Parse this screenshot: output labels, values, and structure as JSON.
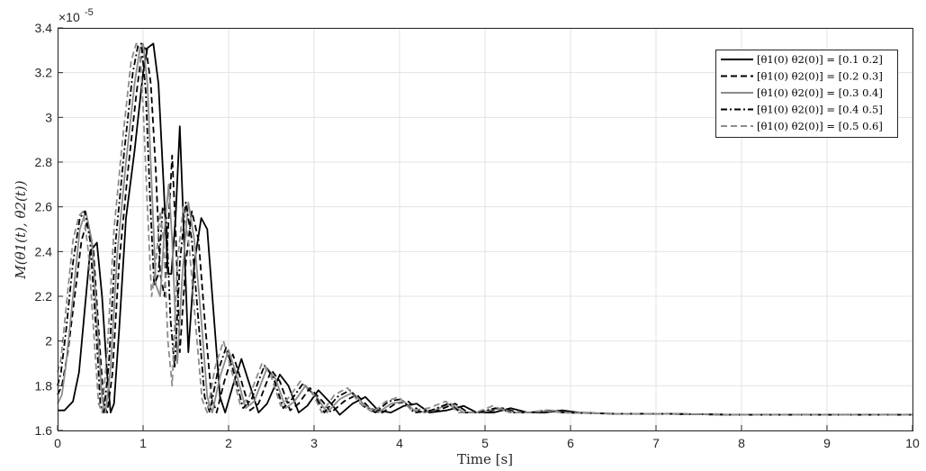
{
  "chart_data": {
    "type": "line",
    "xlabel": "Time [s]",
    "ylabel": "M(θ1(t), θ2(t))",
    "y_exponent_label": "×10",
    "y_exponent_power": "-5",
    "xlim": [
      0,
      10
    ],
    "ylim": [
      1.6,
      3.4
    ],
    "xticks": [
      "0",
      "1",
      "2",
      "3",
      "4",
      "5",
      "6",
      "7",
      "8",
      "9",
      "10"
    ],
    "yticks": [
      "1.6",
      "1.8",
      "2",
      "2.2",
      "2.4",
      "2.6",
      "2.8",
      "3",
      "3.2",
      "3.4"
    ],
    "grid": true,
    "legend_position": "top-right",
    "series": [
      {
        "name": "[θ1(0) θ2(0)] = [0.1 0.2]",
        "color": "#000000",
        "dash": "solid",
        "points": [
          [
            0,
            1.69
          ],
          [
            0.08,
            1.69
          ],
          [
            0.18,
            1.73
          ],
          [
            0.25,
            1.86
          ],
          [
            0.32,
            2.15
          ],
          [
            0.38,
            2.4
          ],
          [
            0.46,
            2.44
          ],
          [
            0.52,
            2.2
          ],
          [
            0.58,
            1.85
          ],
          [
            0.62,
            1.68
          ],
          [
            0.66,
            1.72
          ],
          [
            0.72,
            2.05
          ],
          [
            0.8,
            2.55
          ],
          [
            0.9,
            2.85
          ],
          [
            1.0,
            3.2
          ],
          [
            1.05,
            3.31
          ],
          [
            1.12,
            3.33
          ],
          [
            1.18,
            3.15
          ],
          [
            1.24,
            2.7
          ],
          [
            1.29,
            2.3
          ],
          [
            1.33,
            2.3
          ],
          [
            1.38,
            2.55
          ],
          [
            1.43,
            2.96
          ],
          [
            1.47,
            2.55
          ],
          [
            1.53,
            1.95
          ],
          [
            1.6,
            2.35
          ],
          [
            1.68,
            2.55
          ],
          [
            1.75,
            2.5
          ],
          [
            1.82,
            2.15
          ],
          [
            1.9,
            1.75
          ],
          [
            1.96,
            1.68
          ],
          [
            2.05,
            1.8
          ],
          [
            2.15,
            1.92
          ],
          [
            2.25,
            1.8
          ],
          [
            2.35,
            1.68
          ],
          [
            2.45,
            1.72
          ],
          [
            2.6,
            1.85
          ],
          [
            2.7,
            1.8
          ],
          [
            2.82,
            1.68
          ],
          [
            2.92,
            1.71
          ],
          [
            3.05,
            1.78
          ],
          [
            3.2,
            1.72
          ],
          [
            3.3,
            1.67
          ],
          [
            3.45,
            1.72
          ],
          [
            3.6,
            1.75
          ],
          [
            3.75,
            1.69
          ],
          [
            3.9,
            1.68
          ],
          [
            4.05,
            1.71
          ],
          [
            4.2,
            1.72
          ],
          [
            4.35,
            1.68
          ],
          [
            4.55,
            1.69
          ],
          [
            4.75,
            1.71
          ],
          [
            4.9,
            1.68
          ],
          [
            5.1,
            1.68
          ],
          [
            5.3,
            1.7
          ],
          [
            5.5,
            1.68
          ],
          [
            5.7,
            1.68
          ],
          [
            5.9,
            1.69
          ],
          [
            6.1,
            1.68
          ],
          [
            6.5,
            1.675
          ],
          [
            7,
            1.675
          ],
          [
            8,
            1.67
          ],
          [
            10,
            1.67
          ]
        ]
      },
      {
        "name": "[θ1(0) θ2(0)] = [0.2 0.3]",
        "color": "#000000",
        "dash": "dashed",
        "points": [
          [
            0,
            1.76
          ],
          [
            0.05,
            1.8
          ],
          [
            0.12,
            1.95
          ],
          [
            0.2,
            2.2
          ],
          [
            0.28,
            2.45
          ],
          [
            0.35,
            2.54
          ],
          [
            0.42,
            2.4
          ],
          [
            0.48,
            2.05
          ],
          [
            0.54,
            1.72
          ],
          [
            0.58,
            1.68
          ],
          [
            0.64,
            1.85
          ],
          [
            0.72,
            2.35
          ],
          [
            0.82,
            2.75
          ],
          [
            0.92,
            3.1
          ],
          [
            0.98,
            3.28
          ],
          [
            1.03,
            3.32
          ],
          [
            1.09,
            3.15
          ],
          [
            1.15,
            2.75
          ],
          [
            1.2,
            2.3
          ],
          [
            1.25,
            2.2
          ],
          [
            1.3,
            2.55
          ],
          [
            1.34,
            2.83
          ],
          [
            1.38,
            2.5
          ],
          [
            1.43,
            1.95
          ],
          [
            1.5,
            2.35
          ],
          [
            1.57,
            2.58
          ],
          [
            1.65,
            2.45
          ],
          [
            1.72,
            2.1
          ],
          [
            1.8,
            1.75
          ],
          [
            1.86,
            1.68
          ],
          [
            1.95,
            1.82
          ],
          [
            2.05,
            1.94
          ],
          [
            2.15,
            1.82
          ],
          [
            2.25,
            1.69
          ],
          [
            2.35,
            1.72
          ],
          [
            2.5,
            1.87
          ],
          [
            2.6,
            1.82
          ],
          [
            2.72,
            1.69
          ],
          [
            2.82,
            1.72
          ],
          [
            2.95,
            1.79
          ],
          [
            3.1,
            1.73
          ],
          [
            3.2,
            1.68
          ],
          [
            3.35,
            1.73
          ],
          [
            3.5,
            1.76
          ],
          [
            3.65,
            1.7
          ],
          [
            3.8,
            1.68
          ],
          [
            3.95,
            1.72
          ],
          [
            4.1,
            1.73
          ],
          [
            4.25,
            1.68
          ],
          [
            4.45,
            1.69
          ],
          [
            4.65,
            1.72
          ],
          [
            4.8,
            1.68
          ],
          [
            5.0,
            1.68
          ],
          [
            5.2,
            1.7
          ],
          [
            5.4,
            1.68
          ],
          [
            5.6,
            1.68
          ],
          [
            5.8,
            1.69
          ],
          [
            6.0,
            1.68
          ],
          [
            6.5,
            1.675
          ],
          [
            7,
            1.675
          ],
          [
            8,
            1.67
          ],
          [
            10,
            1.67
          ]
        ]
      },
      {
        "name": "[θ1(0) θ2(0)] = [0.3 0.4]",
        "color": "#8c8c8c",
        "dash": "solid",
        "points": [
          [
            0,
            1.72
          ],
          [
            0.05,
            1.76
          ],
          [
            0.1,
            1.9
          ],
          [
            0.18,
            2.2
          ],
          [
            0.26,
            2.5
          ],
          [
            0.33,
            2.58
          ],
          [
            0.4,
            2.45
          ],
          [
            0.46,
            2.1
          ],
          [
            0.52,
            1.74
          ],
          [
            0.56,
            1.68
          ],
          [
            0.62,
            1.88
          ],
          [
            0.7,
            2.4
          ],
          [
            0.8,
            2.8
          ],
          [
            0.9,
            3.15
          ],
          [
            0.96,
            3.3
          ],
          [
            1.0,
            3.33
          ],
          [
            1.05,
            3.15
          ],
          [
            1.1,
            2.7
          ],
          [
            1.15,
            2.25
          ],
          [
            1.2,
            2.2
          ],
          [
            1.25,
            2.5
          ],
          [
            1.3,
            2.7
          ],
          [
            1.34,
            2.45
          ],
          [
            1.4,
            1.9
          ],
          [
            1.46,
            2.3
          ],
          [
            1.53,
            2.62
          ],
          [
            1.6,
            2.45
          ],
          [
            1.68,
            2.1
          ],
          [
            1.75,
            1.75
          ],
          [
            1.81,
            1.68
          ],
          [
            1.9,
            1.84
          ],
          [
            2.0,
            1.96
          ],
          [
            2.1,
            1.84
          ],
          [
            2.2,
            1.7
          ],
          [
            2.3,
            1.73
          ],
          [
            2.45,
            1.88
          ],
          [
            2.55,
            1.83
          ],
          [
            2.67,
            1.7
          ],
          [
            2.77,
            1.73
          ],
          [
            2.9,
            1.8
          ],
          [
            3.05,
            1.74
          ],
          [
            3.15,
            1.68
          ],
          [
            3.3,
            1.74
          ],
          [
            3.45,
            1.77
          ],
          [
            3.6,
            1.71
          ],
          [
            3.75,
            1.68
          ],
          [
            3.9,
            1.72
          ],
          [
            4.05,
            1.73
          ],
          [
            4.2,
            1.68
          ],
          [
            4.4,
            1.69
          ],
          [
            4.6,
            1.72
          ],
          [
            4.75,
            1.68
          ],
          [
            4.95,
            1.68
          ],
          [
            5.15,
            1.7
          ],
          [
            5.35,
            1.68
          ],
          [
            5.55,
            1.68
          ],
          [
            5.75,
            1.69
          ],
          [
            5.95,
            1.68
          ],
          [
            6.5,
            1.675
          ],
          [
            7,
            1.675
          ],
          [
            8,
            1.67
          ],
          [
            10,
            1.67
          ]
        ]
      },
      {
        "name": "[θ1(0) θ2(0)] = [0.4 0.5]",
        "color": "#000000",
        "dash": "dashdot",
        "points": [
          [
            0,
            1.8
          ],
          [
            0.04,
            1.86
          ],
          [
            0.1,
            2.05
          ],
          [
            0.18,
            2.35
          ],
          [
            0.26,
            2.55
          ],
          [
            0.32,
            2.58
          ],
          [
            0.38,
            2.45
          ],
          [
            0.45,
            2.05
          ],
          [
            0.5,
            1.72
          ],
          [
            0.54,
            1.68
          ],
          [
            0.6,
            1.9
          ],
          [
            0.68,
            2.45
          ],
          [
            0.78,
            2.85
          ],
          [
            0.88,
            3.2
          ],
          [
            0.94,
            3.32
          ],
          [
            0.98,
            3.33
          ],
          [
            1.03,
            3.12
          ],
          [
            1.08,
            2.65
          ],
          [
            1.13,
            2.25
          ],
          [
            1.18,
            2.3
          ],
          [
            1.23,
            2.6
          ],
          [
            1.27,
            2.55
          ],
          [
            1.32,
            2.1
          ],
          [
            1.37,
            1.88
          ],
          [
            1.43,
            2.35
          ],
          [
            1.5,
            2.62
          ],
          [
            1.57,
            2.45
          ],
          [
            1.65,
            2.08
          ],
          [
            1.72,
            1.75
          ],
          [
            1.78,
            1.68
          ],
          [
            1.87,
            1.86
          ],
          [
            1.97,
            1.97
          ],
          [
            2.07,
            1.85
          ],
          [
            2.17,
            1.7
          ],
          [
            2.27,
            1.74
          ],
          [
            2.42,
            1.89
          ],
          [
            2.52,
            1.84
          ],
          [
            2.64,
            1.7
          ],
          [
            2.74,
            1.74
          ],
          [
            2.87,
            1.81
          ],
          [
            3.02,
            1.75
          ],
          [
            3.12,
            1.68
          ],
          [
            3.27,
            1.75
          ],
          [
            3.42,
            1.78
          ],
          [
            3.57,
            1.71
          ],
          [
            3.72,
            1.68
          ],
          [
            3.87,
            1.73
          ],
          [
            4.02,
            1.74
          ],
          [
            4.17,
            1.68
          ],
          [
            4.37,
            1.69
          ],
          [
            4.57,
            1.72
          ],
          [
            4.72,
            1.68
          ],
          [
            4.92,
            1.68
          ],
          [
            5.12,
            1.7
          ],
          [
            5.32,
            1.68
          ],
          [
            5.52,
            1.68
          ],
          [
            5.72,
            1.69
          ],
          [
            5.92,
            1.68
          ],
          [
            6.5,
            1.675
          ],
          [
            7,
            1.675
          ],
          [
            8,
            1.67
          ],
          [
            10,
            1.67
          ]
        ]
      },
      {
        "name": "[θ1(0) θ2(0)] = [0.5 0.6]",
        "color": "#8c8c8c",
        "dash": "dashed",
        "points": [
          [
            0,
            1.86
          ],
          [
            0.04,
            1.92
          ],
          [
            0.1,
            2.15
          ],
          [
            0.18,
            2.45
          ],
          [
            0.25,
            2.56
          ],
          [
            0.3,
            2.58
          ],
          [
            0.36,
            2.4
          ],
          [
            0.43,
            2.0
          ],
          [
            0.48,
            1.72
          ],
          [
            0.52,
            1.68
          ],
          [
            0.58,
            1.95
          ],
          [
            0.66,
            2.5
          ],
          [
            0.76,
            2.9
          ],
          [
            0.86,
            3.25
          ],
          [
            0.92,
            3.33
          ],
          [
            0.96,
            3.32
          ],
          [
            1.0,
            3.05
          ],
          [
            1.05,
            2.6
          ],
          [
            1.1,
            2.2
          ],
          [
            1.15,
            2.35
          ],
          [
            1.2,
            2.58
          ],
          [
            1.24,
            2.45
          ],
          [
            1.29,
            2.0
          ],
          [
            1.34,
            1.8
          ],
          [
            1.4,
            2.35
          ],
          [
            1.47,
            2.6
          ],
          [
            1.54,
            2.42
          ],
          [
            1.62,
            2.05
          ],
          [
            1.69,
            1.74
          ],
          [
            1.75,
            1.68
          ],
          [
            1.84,
            1.88
          ],
          [
            1.94,
            2.0
          ],
          [
            2.04,
            1.86
          ],
          [
            2.14,
            1.71
          ],
          [
            2.24,
            1.75
          ],
          [
            2.39,
            1.9
          ],
          [
            2.49,
            1.85
          ],
          [
            2.61,
            1.71
          ],
          [
            2.71,
            1.75
          ],
          [
            2.84,
            1.82
          ],
          [
            2.99,
            1.76
          ],
          [
            3.09,
            1.68
          ],
          [
            3.24,
            1.76
          ],
          [
            3.39,
            1.79
          ],
          [
            3.54,
            1.72
          ],
          [
            3.69,
            1.68
          ],
          [
            3.84,
            1.73
          ],
          [
            3.99,
            1.75
          ],
          [
            4.14,
            1.69
          ],
          [
            4.34,
            1.7
          ],
          [
            4.54,
            1.73
          ],
          [
            4.69,
            1.68
          ],
          [
            4.89,
            1.68
          ],
          [
            5.09,
            1.71
          ],
          [
            5.29,
            1.68
          ],
          [
            5.49,
            1.68
          ],
          [
            5.69,
            1.69
          ],
          [
            5.89,
            1.68
          ],
          [
            6.5,
            1.675
          ],
          [
            7,
            1.675
          ],
          [
            8,
            1.67
          ],
          [
            10,
            1.67
          ]
        ]
      }
    ]
  }
}
